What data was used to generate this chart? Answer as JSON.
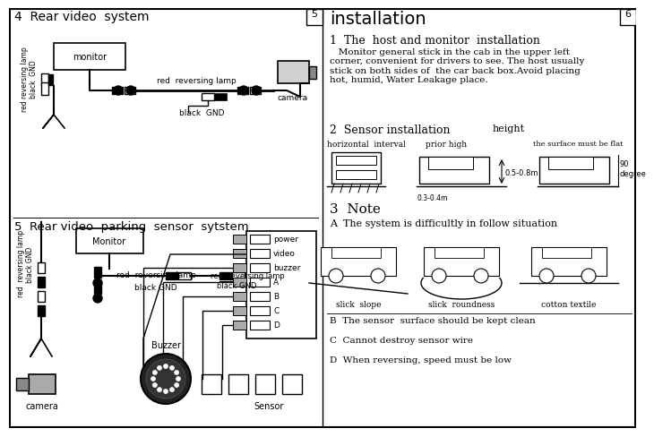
{
  "bg_color": "#f0f0ee",
  "page_nums": [
    "5",
    "6"
  ],
  "section4_title": "4  Rear video  system",
  "section5_title": "5  Rear video  parking  sensor  sytstem",
  "installation_title": "installation",
  "inst1_title": "1  The  host and monitor  installation",
  "inst1_body": "   Monitor general stick in the cab in the upper left\ncorner, convenient for drivers to see. The host usually\nstick on both sides of  the car back box.Avoid placing\nhot, humid, Water Leakage place.",
  "inst2_title": "2  Sensor installation",
  "inst2_height": "height",
  "inst2_labels": [
    "horizontal  interval",
    "prior high",
    "the surface must be flat"
  ],
  "inst2_measure": "0.5-0.8m",
  "inst2_bottom": "0.3-0.4m",
  "inst2_degree": "90\ndegree",
  "inst3_title": "3  Note",
  "inst3_sub": "A  The system is difficultly in follow situation",
  "inst3_car_labels": [
    "slick  slope",
    "slick  roundness",
    "cotton textile"
  ],
  "inst3_notes": [
    "B  The sensor  surface should be kept clean",
    "C  Cannot destroy sensor wire",
    "D  When reversing, speed must be low"
  ]
}
